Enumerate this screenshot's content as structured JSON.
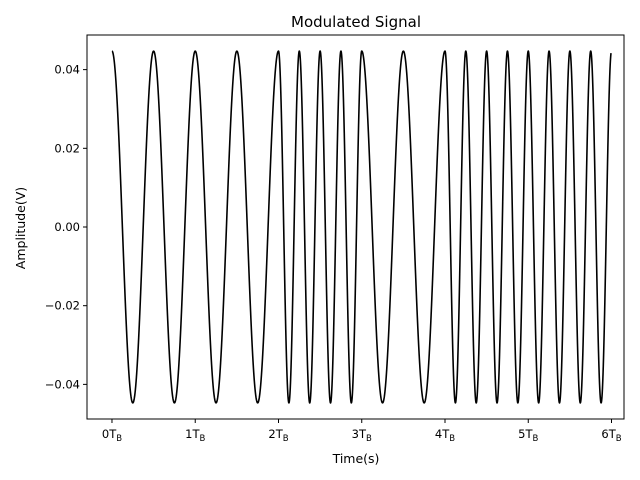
{
  "chart_data": {
    "type": "line",
    "title": "Modulated Signal",
    "xlabel": "Time(s)",
    "ylabel": "Amplitude(V)",
    "xlim": [
      -0.3,
      6.15
    ],
    "ylim": [
      -0.0488,
      0.0488
    ],
    "x_ticks": [
      0,
      1,
      2,
      3,
      4,
      5,
      6
    ],
    "x_tick_labels": [
      "0T_B",
      "1T_B",
      "2T_B",
      "3T_B",
      "4T_B",
      "5T_B",
      "6T_B"
    ],
    "y_ticks": [
      0.04,
      0.02,
      0.0,
      -0.02,
      -0.04
    ],
    "y_tick_labels": [
      "0.04",
      "0.02",
      "0.00",
      "−0.02",
      "−0.04"
    ],
    "grid": false,
    "line_color": "#000000",
    "symbol_rate": 1,
    "amplitude": 0.0447,
    "symbols": [
      0,
      0,
      1,
      0,
      1,
      1
    ],
    "carrier_cycles_per_symbol": {
      "0": 2,
      "1": 4
    }
  }
}
